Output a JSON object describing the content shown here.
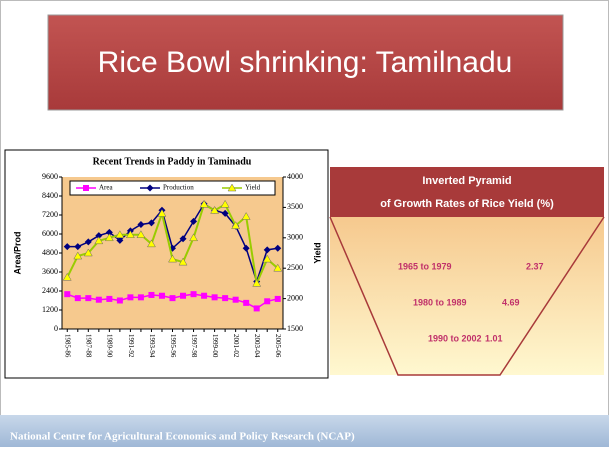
{
  "slide": {
    "title": "Rice Bowl shrinking:  Tamilnadu",
    "footer": "National Centre for Agricultural Economics and Policy Research (NCAP)"
  },
  "chart_data": {
    "type": "line",
    "title": "Recent Trends in Paddy in Taminadu",
    "y_label": "Area/Prod",
    "y2_label": "Yield",
    "categories": [
      "1985-86",
      null,
      "1987-88",
      null,
      "1989-90",
      null,
      "1991-92",
      null,
      "1993-94",
      null,
      "1995-96",
      null,
      "1997-98",
      null,
      "1999-00",
      null,
      "2001-02",
      null,
      "2003-04",
      null,
      "2005-06"
    ],
    "series": [
      {
        "name": "Area",
        "color": "#ff00ff",
        "marker": "square",
        "values": [
          2200,
          1950,
          1950,
          1850,
          1900,
          1800,
          2000,
          2000,
          2150,
          2100,
          1950,
          2100,
          2200,
          2100,
          2000,
          1950,
          1850,
          1650,
          1300,
          1750,
          1900
        ]
      },
      {
        "name": "Production",
        "color": "#000080",
        "marker": "diamond",
        "values": [
          5200,
          5200,
          5500,
          5900,
          6100,
          5600,
          6200,
          6600,
          6700,
          7500,
          5100,
          5700,
          6800,
          7900,
          7500,
          7300,
          6500,
          5100,
          3000,
          5000,
          5100
        ]
      },
      {
        "name": "Yield",
        "color": "#99cc00",
        "marker": "triangle",
        "marker_color": "#ffff00",
        "axis": "y2",
        "values": [
          2350,
          2700,
          2750,
          2950,
          3000,
          3050,
          3050,
          3050,
          2900,
          3400,
          2650,
          2600,
          3000,
          3550,
          3450,
          3550,
          3200,
          3350,
          2250,
          2650,
          2500
        ]
      }
    ],
    "ylim": [
      0,
      9600
    ],
    "yticks": [
      0,
      1200,
      2400,
      3600,
      4800,
      6000,
      7200,
      8400,
      9600
    ],
    "y2lim": [
      1500,
      4000
    ],
    "y2ticks": [
      1500,
      2000,
      2500,
      3000,
      3500,
      4000
    ],
    "legend": "top"
  },
  "pyramid": {
    "title_lines": [
      "Inverted Pyramid",
      "of Growth Rates of Rice Yield (%)"
    ],
    "rows": [
      {
        "period": "1965 to 1979",
        "rate": 2.37
      },
      {
        "period": "1980 to 1989",
        "rate": 4.69
      },
      {
        "period": "1990 to 2002",
        "rate": 1.01
      }
    ]
  }
}
